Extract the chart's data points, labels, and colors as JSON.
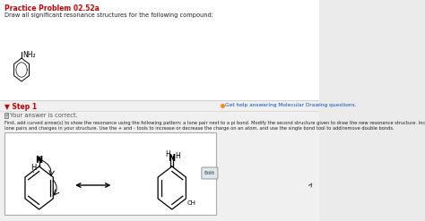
{
  "title": "Practice Problem 02.52a",
  "subtitle": "Draw all significant resonance structures for the following compound:",
  "step_label": "▼ Step 1",
  "step_check": "Your answer is correct.",
  "help_text": "Get help answering Molecular Drawing questions.",
  "instruction_1": "First, add curved arrow(s) to show the resonance using the following pattern: a lone pair next to a pi bond. Modify the second structure given to draw the new resonance structure. Include",
  "instruction_2": "lone pairs and charges in your structure. Use the + and - tools to increase or decrease the charge on an atom, and use the single bond tool to add/remove double bonds.",
  "bg_color": "#ebebeb",
  "top_bg": "#ffffff",
  "bottom_bg": "#f0f0f0",
  "title_color": "#cc0000",
  "body_color": "#222222",
  "step_color": "#cc0000",
  "check_color": "#555555",
  "nh2_label": "NH₂",
  "edit_btn": "Edit",
  "help_dot_color": "#ff8800",
  "help_text_color": "#0055cc",
  "box_border": "#aaaaaa",
  "box_bg": "#ffffff"
}
